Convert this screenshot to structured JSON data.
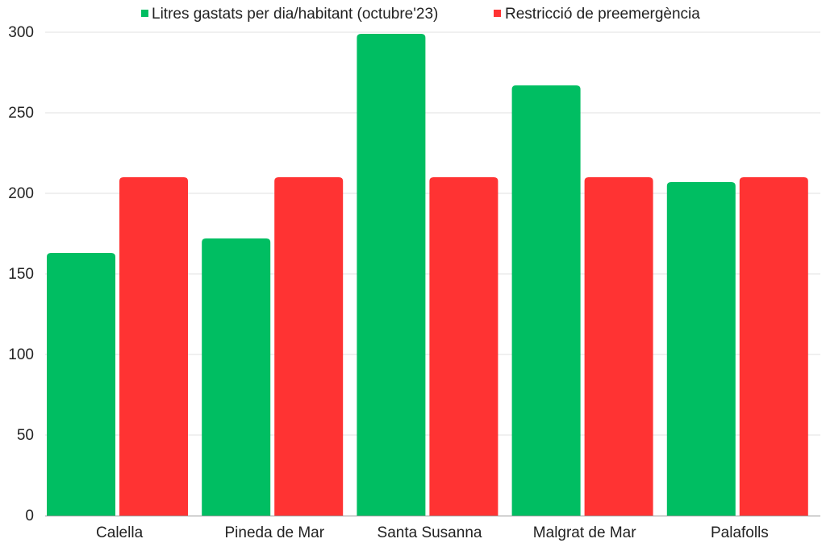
{
  "chart_data": {
    "type": "bar",
    "categories": [
      "Calella",
      "Pineda de Mar",
      "Santa Susanna",
      "Malgrat de Mar",
      "Palafolls"
    ],
    "series": [
      {
        "name": "Litres gastats per dia/habitant (octubre'23)",
        "color": "#00BE62",
        "values": [
          163,
          172,
          299,
          267,
          207
        ]
      },
      {
        "name": "Restricció de preemergència",
        "color": "#FF3333",
        "values": [
          210,
          210,
          210,
          210,
          210
        ]
      }
    ],
    "y_ticks": [
      "0",
      "50",
      "100",
      "150",
      "200",
      "250",
      "300"
    ],
    "ylim": [
      0,
      300
    ],
    "grid": true,
    "legend_position": "top"
  }
}
